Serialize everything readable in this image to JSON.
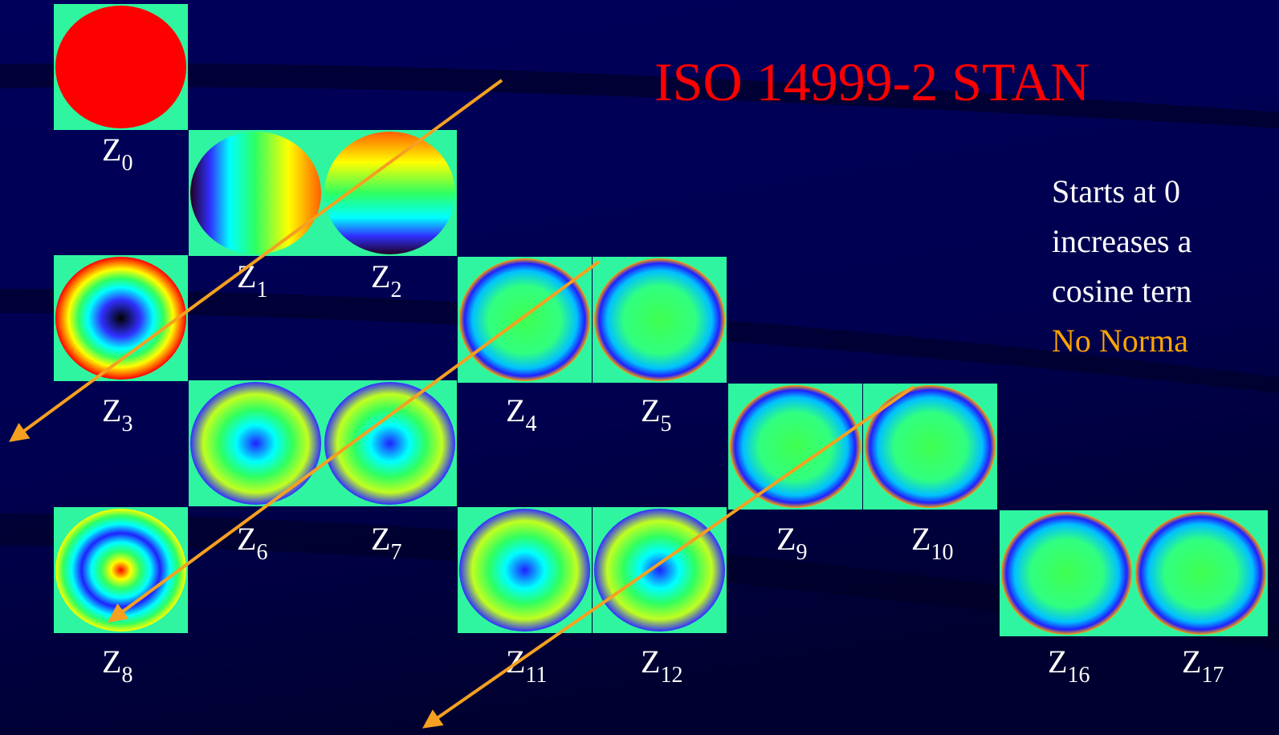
{
  "title": "ISO 14999-2 STAN",
  "notes": [
    "Starts at 0",
    "increases a",
    "cosine tern"
  ],
  "highlight": "No Norma",
  "tiles": [
    {
      "letter": "Z",
      "index": "0"
    },
    {
      "letter": "Z",
      "index": "1"
    },
    {
      "letter": "Z",
      "index": "2"
    },
    {
      "letter": "Z",
      "index": "3"
    },
    {
      "letter": "Z",
      "index": "4"
    },
    {
      "letter": "Z",
      "index": "5"
    },
    {
      "letter": "Z",
      "index": "6"
    },
    {
      "letter": "Z",
      "index": "7"
    },
    {
      "letter": "Z",
      "index": "8"
    },
    {
      "letter": "Z",
      "index": "9"
    },
    {
      "letter": "Z",
      "index": "10"
    },
    {
      "letter": "Z",
      "index": "11"
    },
    {
      "letter": "Z",
      "index": "12"
    },
    {
      "letter": "Z",
      "index": "16"
    },
    {
      "letter": "Z",
      "index": "17"
    }
  ]
}
